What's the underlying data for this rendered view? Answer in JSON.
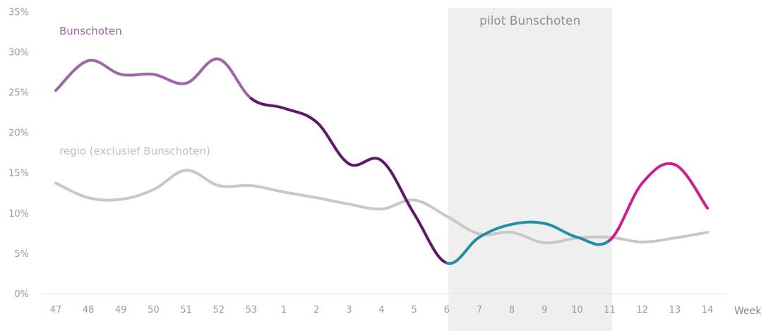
{
  "chart_data": {
    "type": "line",
    "categories": [
      "47",
      "48",
      "49",
      "50",
      "51",
      "52",
      "53",
      "1",
      "2",
      "3",
      "4",
      "5",
      "6",
      "7",
      "8",
      "9",
      "10",
      "11",
      "12",
      "13",
      "14"
    ],
    "series": [
      {
        "name": "Bunschoten",
        "values": [
          25.2,
          28.9,
          27.2,
          27.2,
          26.1,
          29.1,
          24.2,
          23.0,
          21.3,
          16.1,
          16.5,
          9.9,
          3.8,
          7.0,
          8.6,
          8.7,
          7.0,
          6.6,
          13.7,
          16.0,
          10.6
        ],
        "segments": [
          {
            "from": 0,
            "to": 6,
            "color": "#9e65a8"
          },
          {
            "from": 6,
            "to": 12,
            "color": "#5e1a66"
          },
          {
            "from": 12,
            "to": 17,
            "color": "#24909f"
          },
          {
            "from": 17,
            "to": 20,
            "color": "#cc1f8f"
          }
        ]
      },
      {
        "name": "regio (exclusief Bunschoten)",
        "values": [
          13.7,
          11.9,
          11.7,
          12.9,
          15.3,
          13.4,
          13.4,
          12.6,
          11.9,
          11.1,
          10.5,
          11.6,
          9.6,
          7.4,
          7.6,
          6.3,
          6.9,
          7.0,
          6.4,
          6.9,
          7.6
        ],
        "color": "#c8c8c8"
      }
    ],
    "y_ticks": [
      "0%",
      "5%",
      "10%",
      "15%",
      "20%",
      "25%",
      "30%",
      "35%"
    ],
    "ylim": [
      0,
      35
    ],
    "xlabel": "Week",
    "band": {
      "label": "pilot Bunschoten",
      "from_category": "6",
      "to_category": "11",
      "color": "#efefef"
    },
    "series_label_colors": {
      "Bunschoten": "#9e65a8",
      "regio (exclusief Bunschoten)": "#c0c0c0"
    }
  }
}
